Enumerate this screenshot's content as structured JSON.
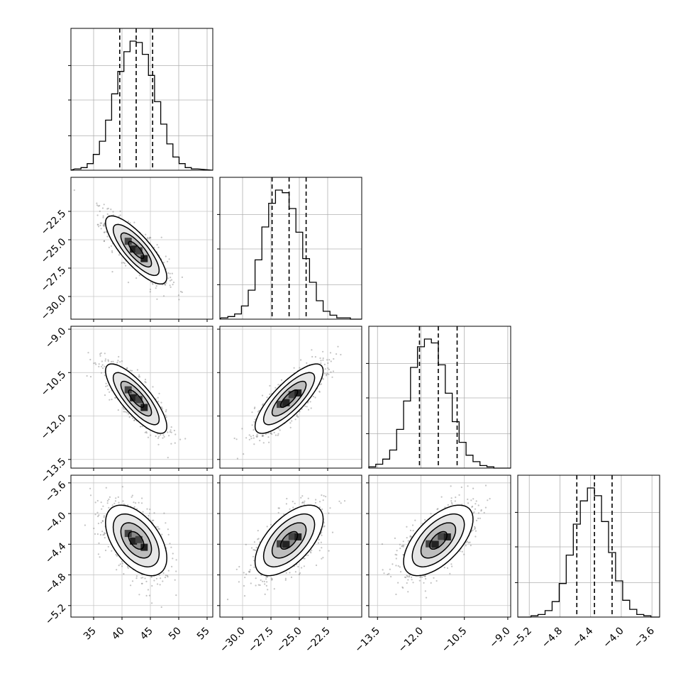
{
  "chart_data": {
    "type": "corner",
    "parameters": [
      {
        "range": [
          31,
          56
        ],
        "ticks": [
          35,
          40,
          45,
          50,
          55
        ],
        "tick_labels": [
          "35",
          "40",
          "45",
          "50",
          "55"
        ],
        "quantiles": [
          39.6,
          42.5,
          45.4
        ],
        "mean": 42.5,
        "sd": 2.7
      },
      {
        "range": [
          -32,
          -19.5
        ],
        "ticks": [
          -30.0,
          -27.5,
          -25.0,
          -22.5
        ],
        "tick_labels": [
          "−30.0",
          "−27.5",
          "−25.0",
          "−22.5"
        ],
        "quantiles": [
          -27.4,
          -25.9,
          -24.4
        ],
        "mean": -25.9,
        "sd": 1.5
      },
      {
        "range": [
          -13.8,
          -8.9
        ],
        "ticks": [
          -13.5,
          -12.0,
          -10.5,
          -9.0
        ],
        "tick_labels": [
          "−13.5",
          "−12.0",
          "−10.5",
          "−9.0"
        ],
        "quantiles": [
          -12.05,
          -11.4,
          -10.75
        ],
        "mean": -11.4,
        "sd": 0.6
      },
      {
        "range": [
          -5.35,
          -3.5
        ],
        "ticks": [
          -5.2,
          -4.8,
          -4.4,
          -4.0,
          -3.6
        ],
        "tick_labels": [
          "−5.2",
          "−4.8",
          "−4.4",
          "−4.0",
          "−3.6"
        ],
        "quantiles": [
          -4.58,
          -4.35,
          -4.12
        ],
        "mean": -4.35,
        "sd": 0.23
      }
    ],
    "correlations": [
      [
        1,
        -0.8,
        -0.8,
        -0.5
      ],
      [
        -0.8,
        1,
        0.8,
        0.6
      ],
      [
        -0.8,
        0.8,
        1,
        0.6
      ],
      [
        -0.5,
        0.6,
        0.6,
        1
      ]
    ],
    "histograms": [
      [
        1,
        2,
        5,
        12,
        22,
        38,
        58,
        75,
        90,
        98,
        97,
        88,
        72,
        52,
        35,
        20,
        10,
        5,
        2,
        1
      ],
      [
        1,
        2,
        4,
        10,
        22,
        45,
        70,
        88,
        98,
        96,
        84,
        66,
        46,
        28,
        14,
        6,
        3,
        1,
        1,
        0
      ],
      [
        1,
        3,
        7,
        14,
        30,
        52,
        78,
        94,
        100,
        97,
        80,
        58,
        36,
        20,
        10,
        5,
        2,
        1,
        0,
        0
      ],
      [
        0,
        1,
        2,
        5,
        12,
        26,
        48,
        72,
        90,
        100,
        94,
        74,
        50,
        28,
        13,
        6,
        2,
        1,
        0,
        0
      ]
    ],
    "contour_levels_sigma": [
      0.5,
      1.0,
      1.5,
      2.0
    ],
    "show_grid": true,
    "xlabels": [],
    "ylabels": []
  }
}
